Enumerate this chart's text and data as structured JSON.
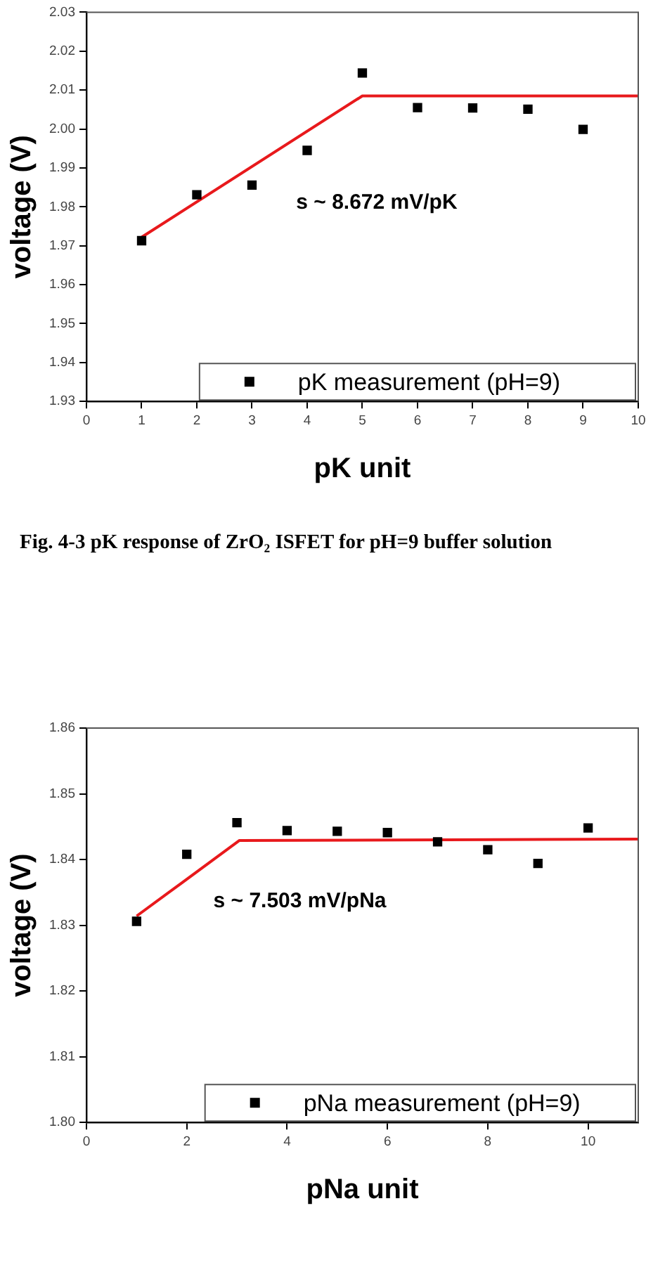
{
  "chart_data": [
    {
      "type": "scatter",
      "xlabel": "pK unit",
      "ylabel": "voltage (V)",
      "xlim": [
        0,
        10
      ],
      "ylim": [
        1.93,
        2.03
      ],
      "xticks": [
        0,
        1,
        2,
        3,
        4,
        5,
        6,
        7,
        8,
        9,
        10
      ],
      "yticks": [
        1.93,
        1.94,
        1.95,
        1.96,
        1.97,
        1.98,
        1.99,
        {
          "value": 2,
          "label": "2.00"
        },
        2.01,
        2.02,
        2.03
      ],
      "grid": false,
      "legend": "bottom right",
      "series": [
        {
          "name": "pK measurement (pH=9)",
          "color": "#000000",
          "marker": "square",
          "x": [
            1,
            2,
            3,
            4,
            5,
            6,
            7,
            8,
            9
          ],
          "values": [
            1.9713,
            1.9831,
            1.9856,
            1.9945,
            2.0144,
            2.0055,
            2.0054,
            2.0051,
            1.9999
          ]
        },
        {
          "type": "line",
          "color": "#e8191c",
          "marker": "none",
          "x": [
            1,
            5,
            10
          ],
          "values": [
            1.9722,
            2.0085,
            2.0085
          ]
        }
      ],
      "annotations": [
        "s ~ 8.672 mV/pK",
        "Fig. 4-3 pK response of ZrO₂ ISFET for pH=9 buffer solution"
      ]
    },
    {
      "type": "scatter",
      "xlabel": "pNa unit",
      "ylabel": "voltage (V)",
      "xlim": [
        0,
        11
      ],
      "ylim": [
        1.8,
        1.86
      ],
      "xticks": [
        0,
        2,
        4,
        6,
        8,
        10
      ],
      "yticks": [
        {
          "value": 1.8,
          "label": "1.80"
        },
        1.81,
        1.82,
        1.83,
        1.84,
        1.85,
        1.86
      ],
      "grid": false,
      "legend": "bottom right",
      "series": [
        {
          "name": "pNa measurement (pH=9)",
          "color": "#000000",
          "marker": "square",
          "x": [
            1,
            2,
            3,
            4,
            5,
            6,
            7,
            8,
            9,
            10
          ],
          "values": [
            1.8306,
            1.8408,
            1.8456,
            1.8444,
            1.8443,
            1.8441,
            1.8427,
            1.8415,
            1.8394,
            1.8448
          ]
        },
        {
          "type": "line",
          "color": "#e8191c",
          "marker": "none",
          "x": [
            1,
            3.05,
            11
          ],
          "values": [
            1.8314,
            1.8429,
            1.8431
          ]
        }
      ],
      "annotations": [
        "s ~ 7.503 mV/pNa"
      ]
    }
  ]
}
